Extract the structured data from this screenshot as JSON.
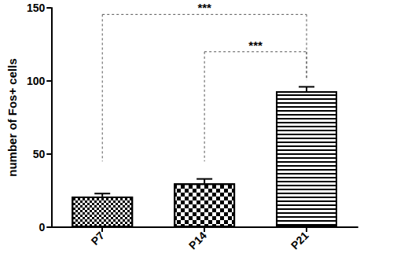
{
  "chart_data": {
    "type": "bar",
    "categories": [
      "P7",
      "P14",
      "P21"
    ],
    "values": [
      21,
      30,
      93
    ],
    "errors": [
      2,
      3,
      3
    ],
    "color": "#000000",
    "ylabel": "number of Fos+ cells",
    "ylim": [
      0,
      150
    ],
    "yticks": [
      0,
      50,
      100,
      150
    ],
    "grid": false,
    "annotations": [
      {
        "from": "P7",
        "to": "P21",
        "label": "***"
      },
      {
        "from": "P14",
        "to": "P21",
        "label": "***"
      }
    ]
  }
}
